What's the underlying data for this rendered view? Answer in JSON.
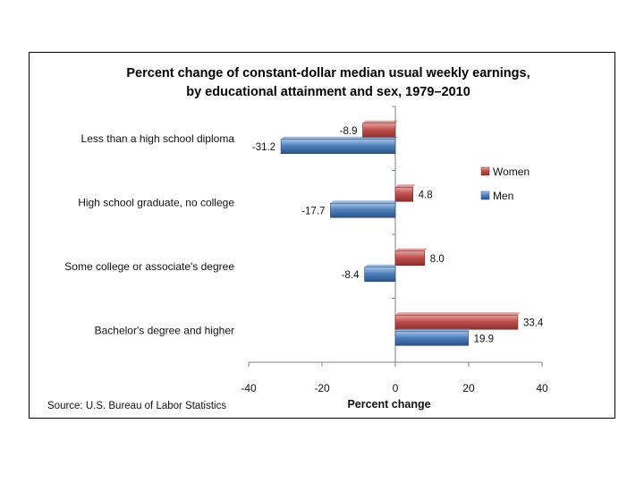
{
  "chart_data": {
    "type": "bar",
    "orientation": "horizontal",
    "title_lines": [
      "Percent change of constant-dollar median usual weekly earnings,",
      "by educational attainment and sex, 1979–2010"
    ],
    "categories": [
      "Less than a high school diploma",
      "High school graduate, no college",
      "Some college or associate's  degree",
      "Bachelor's degree and higher"
    ],
    "series": [
      {
        "name": "Women",
        "color": "#c0504d",
        "values": [
          -8.9,
          4.8,
          8.0,
          33.4
        ],
        "labels": [
          "-8.9",
          "4.8",
          "8.0",
          "33.4"
        ]
      },
      {
        "name": "Men",
        "color": "#4f81bd",
        "values": [
          -31.2,
          -17.7,
          -8.4,
          19.9
        ],
        "labels": [
          "-31.2",
          "-17.7",
          "-8.4",
          "19.9"
        ]
      }
    ],
    "xlabel": "Percent change",
    "xlim": [
      -40,
      40
    ],
    "xticks": [
      "-40",
      "-20",
      "0",
      "20",
      "40"
    ],
    "legend_position": "right",
    "source": "Source: U.S. Bureau of Labor Statistics"
  }
}
